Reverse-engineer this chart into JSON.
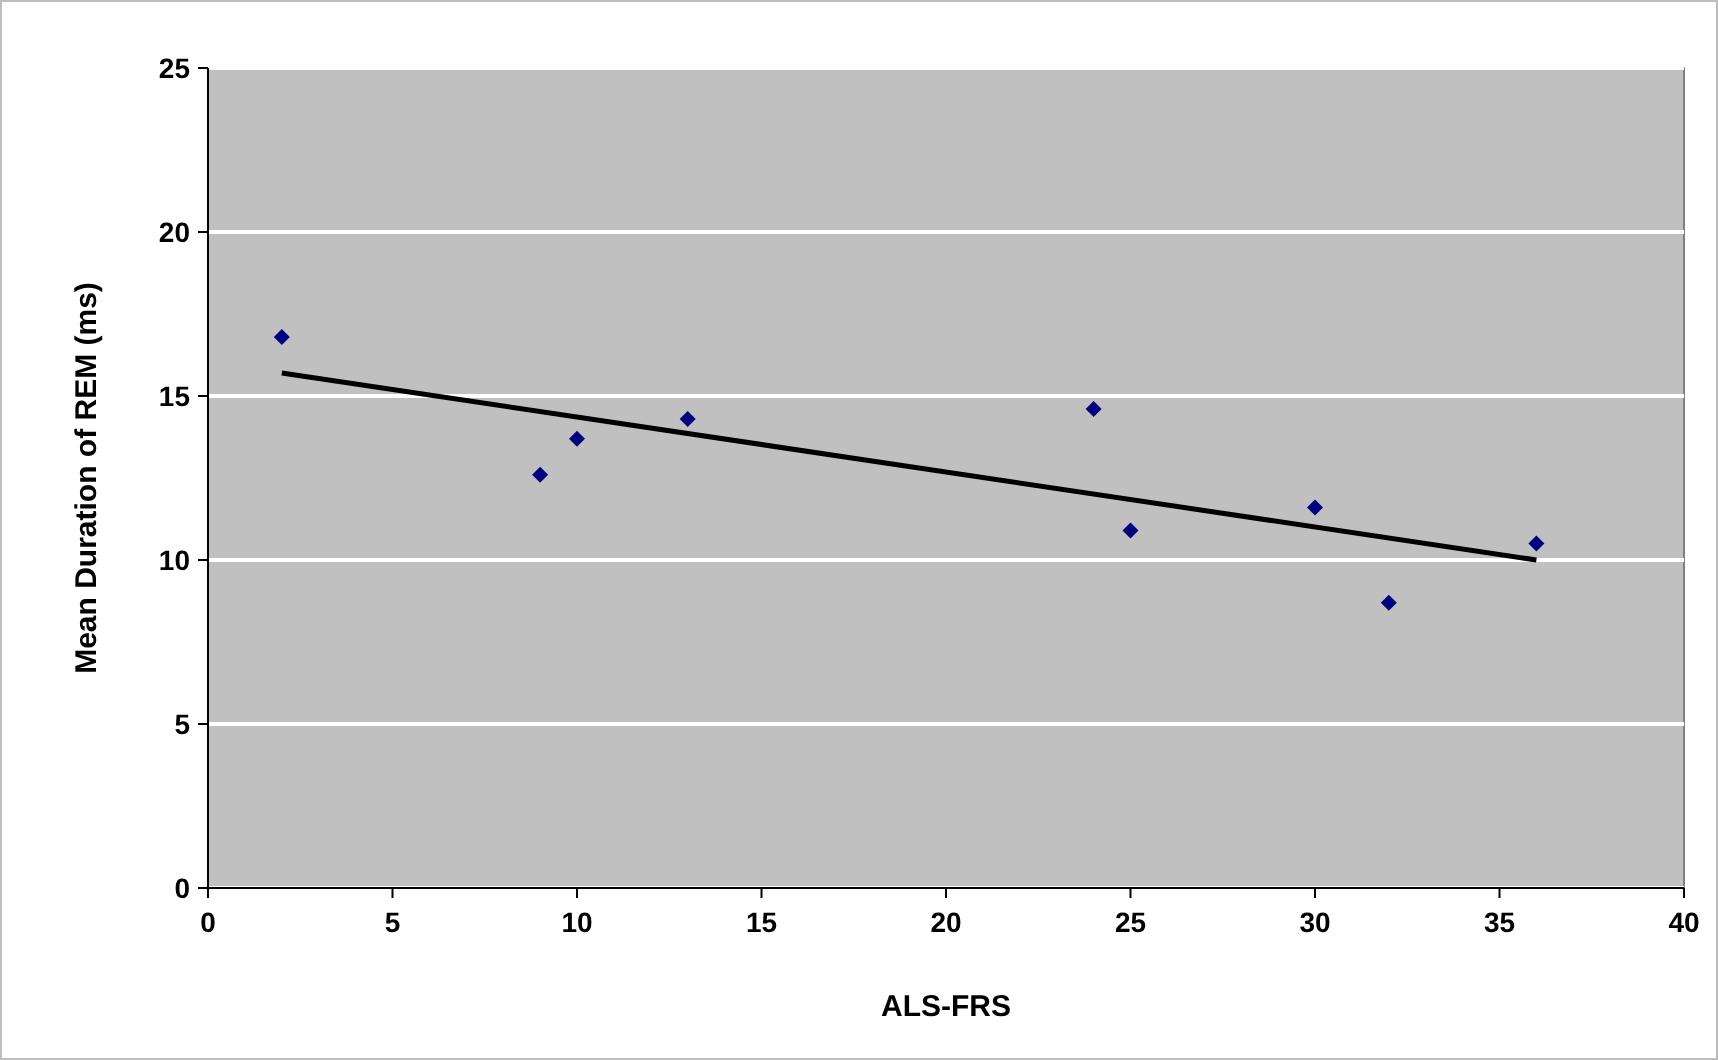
{
  "chart_data": {
    "type": "scatter",
    "xlabel": "ALS-FRS",
    "ylabel": "Mean Duration of REM (ms)",
    "xlim": [
      0,
      40
    ],
    "xticks": [
      0,
      5,
      10,
      15,
      20,
      25,
      30,
      35,
      40
    ],
    "ylim": [
      0,
      25
    ],
    "yticks": [
      0,
      5,
      10,
      15,
      20,
      25
    ],
    "grid": "y",
    "series": [
      {
        "marker": "diamond",
        "color": "#000080",
        "x": [
          2,
          9,
          10,
          13,
          24,
          25,
          30,
          32,
          36
        ],
        "values": [
          16.8,
          12.6,
          13.7,
          14.3,
          14.6,
          10.9,
          11.6,
          8.7,
          10.5
        ]
      },
      {
        "type": "line",
        "color": "#000000",
        "x": [
          2,
          36
        ],
        "values": [
          15.7,
          10.0
        ],
        "line_style": "solid",
        "marker": "none"
      }
    ]
  }
}
